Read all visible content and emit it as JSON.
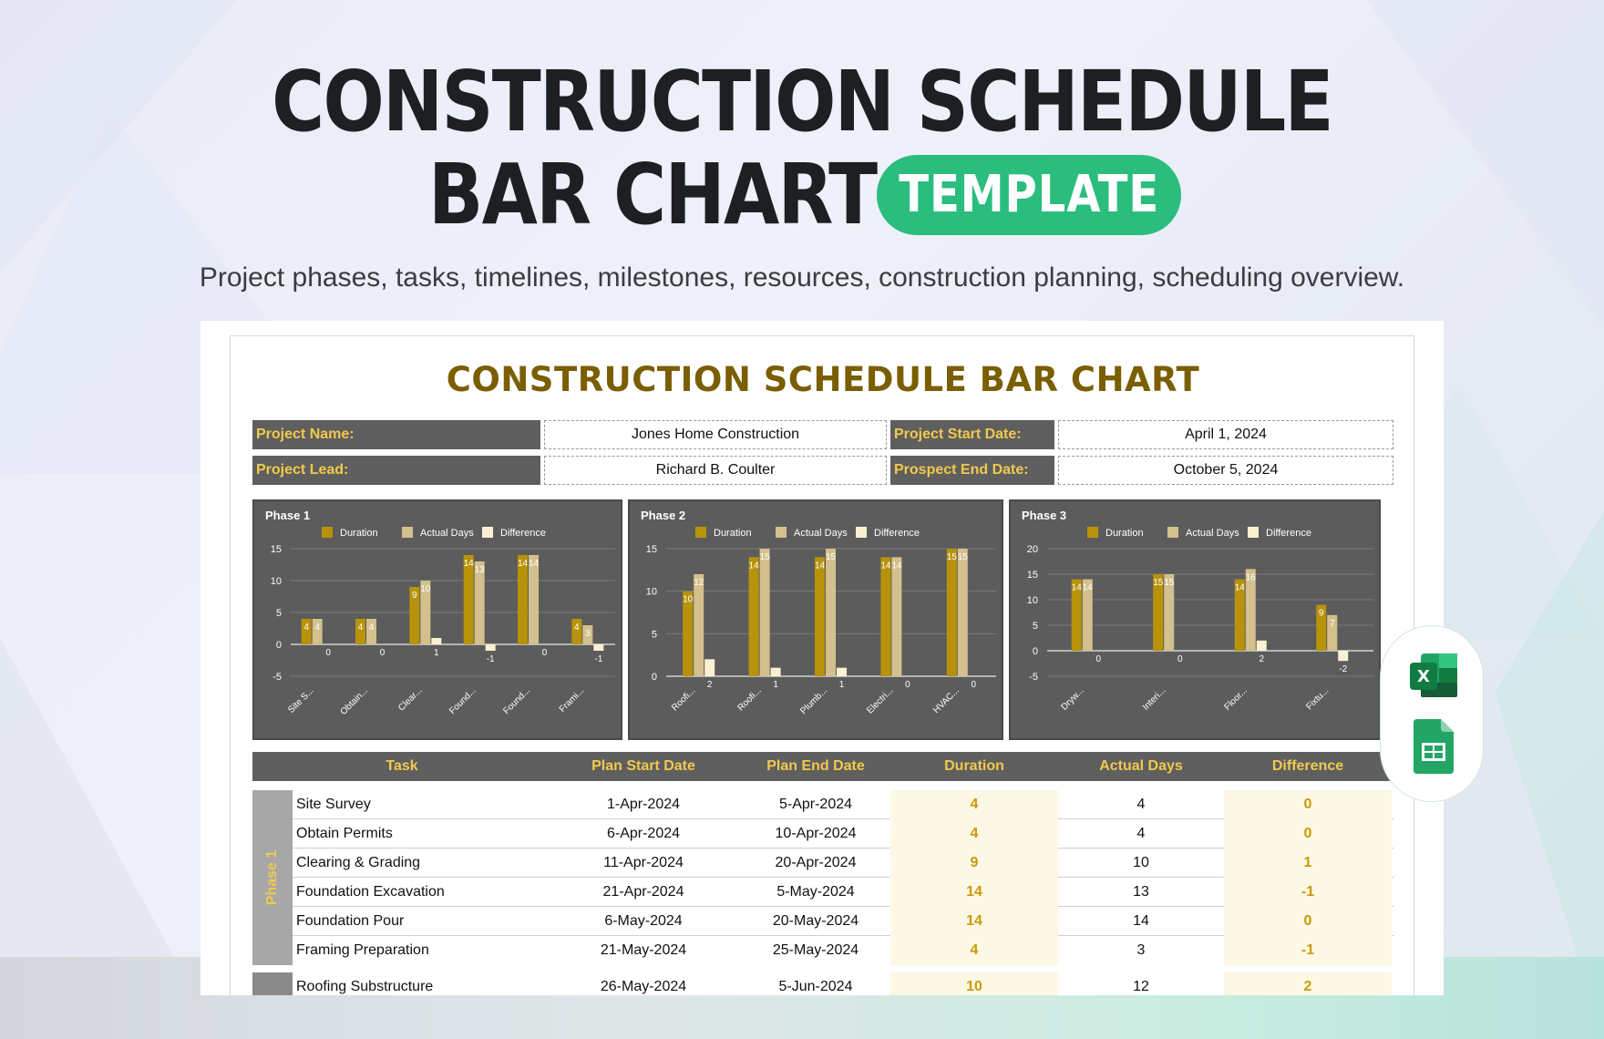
{
  "hero": {
    "title_line1": "CONSTRUCTION SCHEDULE",
    "title_line2": "BAR CHART",
    "badge": "TEMPLATE",
    "subtitle": "Project phases, tasks, timelines, milestones, resources, construction planning, scheduling overview."
  },
  "sheet": {
    "title": "CONSTRUCTION SCHEDULE BAR CHART",
    "info": {
      "project_name_label": "Project Name:",
      "project_name": "Jones Home Construction",
      "start_date_label": "Project Start Date:",
      "start_date": "April 1, 2024",
      "lead_label": "Project Lead:",
      "lead": "Richard B. Coulter",
      "end_date_label": "Prospect End Date:",
      "end_date": "October 5, 2024"
    },
    "table": {
      "headers": [
        "Task",
        "Plan Start Date",
        "Plan End Date",
        "Duration",
        "Actual Days",
        "Difference"
      ],
      "phase1_label": "Phase 1",
      "rows": [
        {
          "task": "Site Survey",
          "start": "1-Apr-2024",
          "end": "5-Apr-2024",
          "duration": "4",
          "actual": "4",
          "diff": "0"
        },
        {
          "task": "Obtain Permits",
          "start": "6-Apr-2024",
          "end": "10-Apr-2024",
          "duration": "4",
          "actual": "4",
          "diff": "0"
        },
        {
          "task": "Clearing & Grading",
          "start": "11-Apr-2024",
          "end": "20-Apr-2024",
          "duration": "9",
          "actual": "10",
          "diff": "1"
        },
        {
          "task": "Foundation Excavation",
          "start": "21-Apr-2024",
          "end": "5-May-2024",
          "duration": "14",
          "actual": "13",
          "diff": "-1"
        },
        {
          "task": "Foundation Pour",
          "start": "6-May-2024",
          "end": "20-May-2024",
          "duration": "14",
          "actual": "14",
          "diff": "0"
        },
        {
          "task": "Framing Preparation",
          "start": "21-May-2024",
          "end": "25-May-2024",
          "duration": "4",
          "actual": "3",
          "diff": "-1"
        },
        {
          "task": "Roofing Substructure",
          "start": "26-May-2024",
          "end": "5-Jun-2024",
          "duration": "10",
          "actual": "12",
          "diff": "2"
        }
      ]
    }
  },
  "colors": {
    "duration": "#b8930a",
    "actual": "#d4c08c",
    "difference": "#fbf0d2",
    "panel": "#5c5c5c",
    "accent_green": "#2bbd7e"
  },
  "icons": [
    "excel-icon",
    "google-sheets-icon"
  ],
  "chart_data": [
    {
      "type": "bar",
      "title": "Phase 1",
      "categories": [
        "Site S...",
        "Obtain...",
        "Clear...",
        "Found...",
        "Found...",
        "Frami..."
      ],
      "series": [
        {
          "name": "Duration",
          "values": [
            4,
            4,
            9,
            14,
            14,
            4
          ]
        },
        {
          "name": "Actual Days",
          "values": [
            4,
            4,
            10,
            13,
            14,
            3
          ]
        },
        {
          "name": "Difference",
          "values": [
            0,
            0,
            1,
            -1,
            0,
            -1
          ]
        }
      ],
      "yticks": [
        15,
        10,
        5,
        0,
        -5
      ],
      "ylim": [
        -5,
        15
      ],
      "legend": "top",
      "grid": true
    },
    {
      "type": "bar",
      "title": "Phase 2",
      "categories": [
        "Roofi...",
        "Roofi...",
        "Plumb...",
        "Electri...",
        "HVAC..."
      ],
      "series": [
        {
          "name": "Duration",
          "values": [
            10,
            14,
            14,
            14,
            15
          ]
        },
        {
          "name": "Actual Days",
          "values": [
            12,
            15,
            15,
            14,
            15
          ]
        },
        {
          "name": "Difference",
          "values": [
            2,
            1,
            1,
            0,
            0
          ]
        }
      ],
      "yticks": [
        15,
        10,
        5,
        0
      ],
      "ylim": [
        0,
        15
      ],
      "legend": "top",
      "grid": true
    },
    {
      "type": "bar",
      "title": "Phase 3",
      "categories": [
        "Dryw...",
        "Interi...",
        "Floor...",
        "Fixtu..."
      ],
      "series": [
        {
          "name": "Duration",
          "values": [
            14,
            15,
            14,
            9
          ]
        },
        {
          "name": "Actual Days",
          "values": [
            14,
            15,
            16,
            7
          ]
        },
        {
          "name": "Difference",
          "values": [
            0,
            0,
            2,
            -2
          ]
        }
      ],
      "yticks": [
        20,
        15,
        10,
        5,
        0,
        -5
      ],
      "ylim": [
        -5,
        20
      ],
      "legend": "top",
      "grid": true
    }
  ]
}
